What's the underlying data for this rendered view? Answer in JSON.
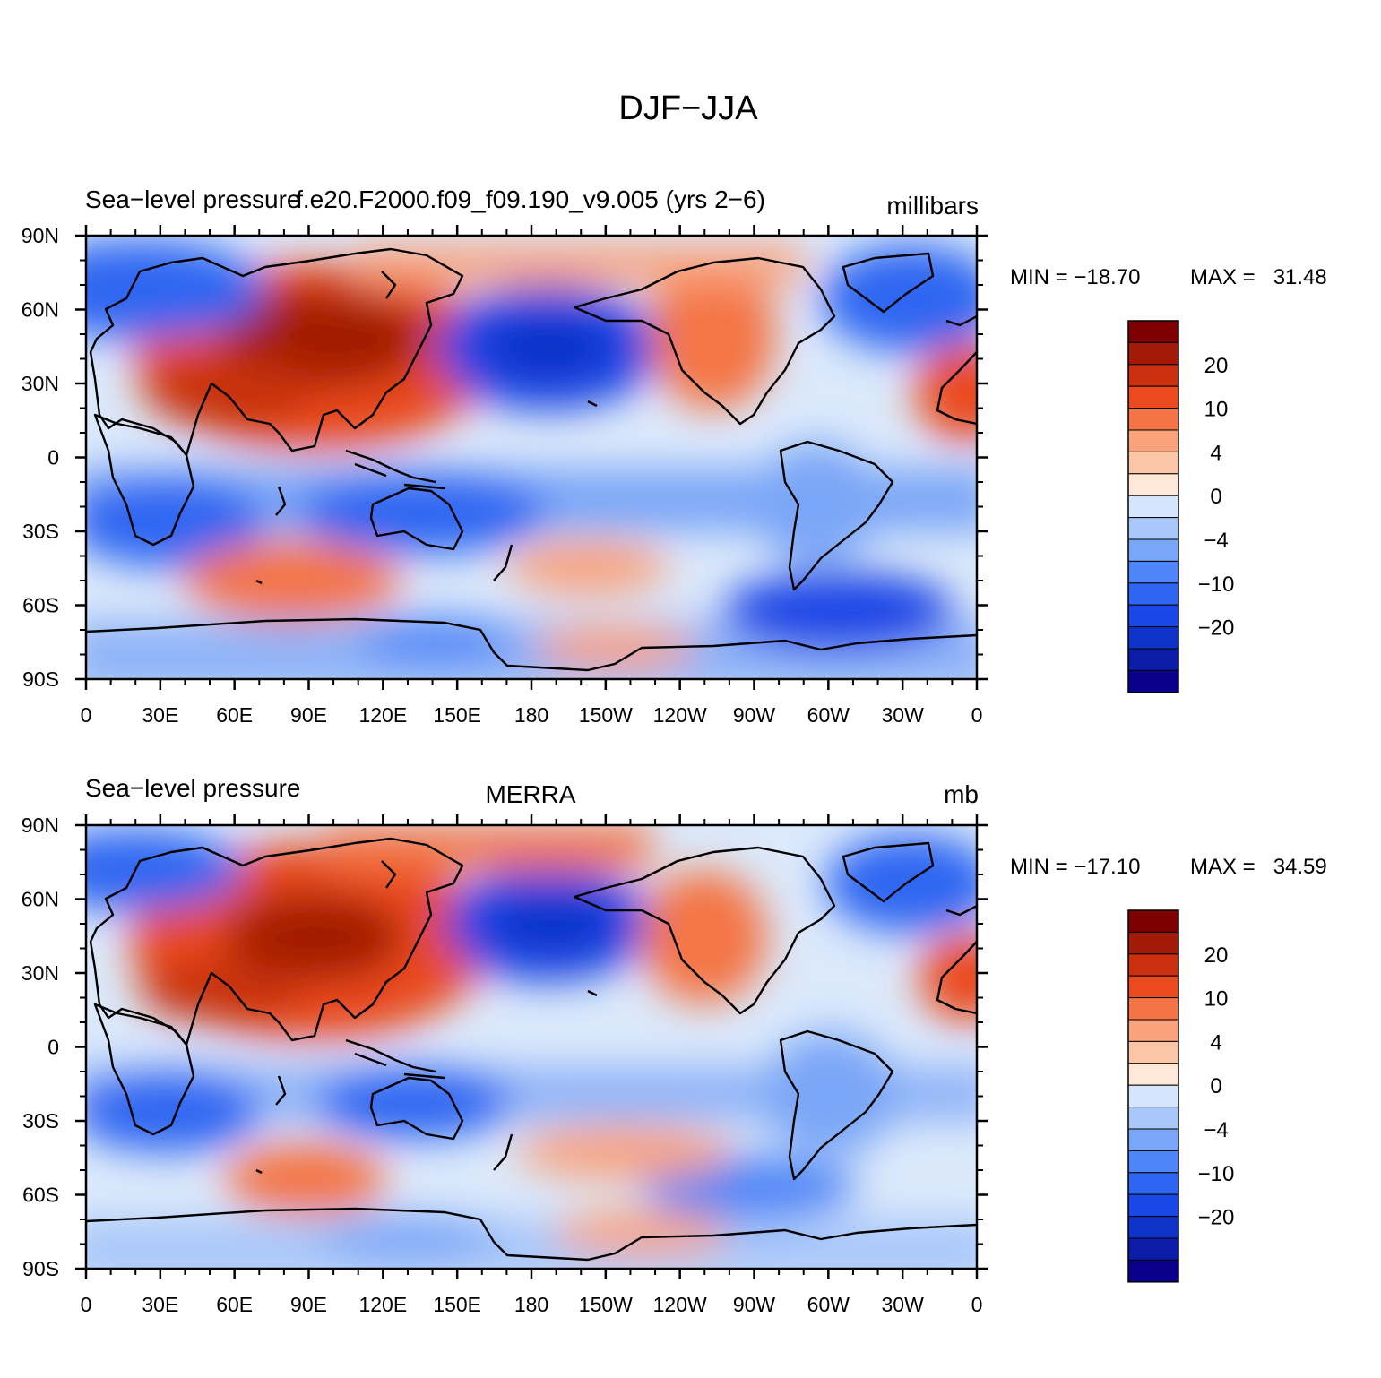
{
  "figure": {
    "title": "DJF−JJA"
  },
  "lon_labels": [
    "0",
    "30E",
    "60E",
    "90E",
    "120E",
    "150E",
    "180",
    "150W",
    "120W",
    "90W",
    "60W",
    "30W",
    "0"
  ],
  "lat_labels": [
    "90N",
    "60N",
    "30N",
    "0",
    "30S",
    "60S",
    "90S"
  ],
  "colorbar": {
    "colors": [
      "#08008a",
      "#0a1ca8",
      "#0d33c8",
      "#1a47e6",
      "#2e66f2",
      "#4f86f7",
      "#7aa6f7",
      "#a8c7fa",
      "#d5e6fc",
      "#ffe8d8",
      "#fcc6a6",
      "#f9a27c",
      "#f47445",
      "#ea4a1e",
      "#c8300e",
      "#a31a06",
      "#7f0000"
    ],
    "labels": [
      "20",
      "10",
      "4",
      "0",
      "−4",
      "−10",
      "−20"
    ]
  },
  "panels": [
    {
      "id": "model",
      "left_title": "Sea−level pressure",
      "center_title": "f.e20.F2000.f09_f09.190_v9.005 (yrs 2−6)",
      "units": "millibars",
      "min_label": "MIN = −18.70",
      "max_label": "MAX =   31.48"
    },
    {
      "id": "obs",
      "left_title": "Sea−level pressure",
      "center_title": "MERRA",
      "units": "mb",
      "min_label": "MIN = −17.10",
      "max_label": "MAX =   34.59"
    }
  ]
}
